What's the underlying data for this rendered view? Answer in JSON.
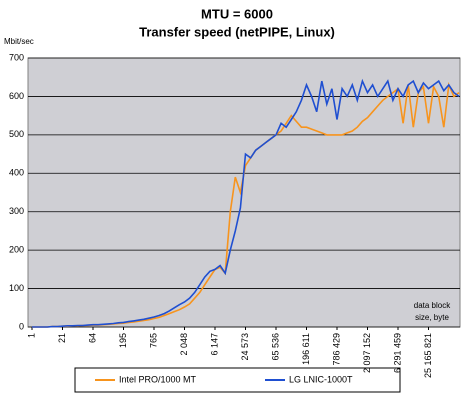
{
  "chart_data": {
    "type": "line",
    "title": "MTU = 6000",
    "subtitle": "Transfer speed (netPIPE, Linux)",
    "y_label": "Mbit/sec",
    "annotation": [
      "data block",
      "size, byte"
    ],
    "categories": [
      "1",
      null,
      null,
      null,
      null,
      null,
      "21",
      null,
      null,
      null,
      null,
      null,
      "64",
      null,
      null,
      null,
      null,
      null,
      "195",
      null,
      null,
      null,
      null,
      null,
      "765",
      null,
      null,
      null,
      null,
      null,
      "2 048",
      null,
      null,
      null,
      null,
      null,
      "6 147",
      null,
      null,
      null,
      null,
      null,
      "24 573",
      null,
      null,
      null,
      null,
      null,
      "65 536",
      null,
      null,
      null,
      null,
      null,
      "196 611",
      null,
      null,
      null,
      null,
      null,
      "786 429",
      null,
      null,
      null,
      null,
      null,
      "2 097 152",
      null,
      null,
      null,
      null,
      null,
      "6 291 459",
      null,
      null,
      null,
      null,
      null,
      "25 165 821",
      null,
      null,
      null,
      null,
      null,
      null
    ],
    "series": [
      {
        "name": "Intel PRO/1000 MT",
        "color": "#f7941d",
        "values": [
          0,
          0,
          0,
          0,
          1,
          1,
          2,
          2,
          3,
          3,
          4,
          4,
          5,
          5,
          6,
          7,
          8,
          9,
          10,
          12,
          13,
          15,
          17,
          19,
          22,
          25,
          30,
          35,
          40,
          45,
          52,
          60,
          75,
          90,
          110,
          130,
          150,
          155,
          140,
          300,
          390,
          350,
          420,
          440,
          460,
          470,
          480,
          490,
          500,
          510,
          530,
          550,
          535,
          520,
          520,
          515,
          510,
          505,
          500,
          500,
          500,
          500,
          505,
          510,
          520,
          535,
          545,
          560,
          575,
          590,
          600,
          610,
          620,
          530,
          630,
          520,
          610,
          625,
          530,
          625,
          600,
          520,
          630,
          600,
          610
        ]
      },
      {
        "name": "LG LNIC-1000T",
        "color": "#1f4fd1",
        "values": [
          0,
          0,
          0,
          0,
          1,
          1,
          2,
          3,
          3,
          4,
          4,
          5,
          6,
          6,
          7,
          8,
          9,
          11,
          12,
          14,
          16,
          18,
          20,
          23,
          26,
          30,
          35,
          42,
          50,
          58,
          65,
          75,
          90,
          110,
          130,
          145,
          150,
          160,
          140,
          200,
          250,
          310,
          450,
          440,
          460,
          470,
          480,
          490,
          500,
          530,
          520,
          540,
          560,
          590,
          630,
          600,
          560,
          640,
          580,
          620,
          540,
          620,
          600,
          630,
          590,
          640,
          610,
          630,
          600,
          620,
          640,
          590,
          620,
          600,
          630,
          640,
          610,
          635,
          620,
          630,
          640,
          615,
          630,
          610,
          600
        ]
      }
    ],
    "ylim": [
      0,
      700
    ],
    "yticks": [
      0,
      100,
      200,
      300,
      400,
      500,
      600,
      700
    ],
    "grid": true
  }
}
